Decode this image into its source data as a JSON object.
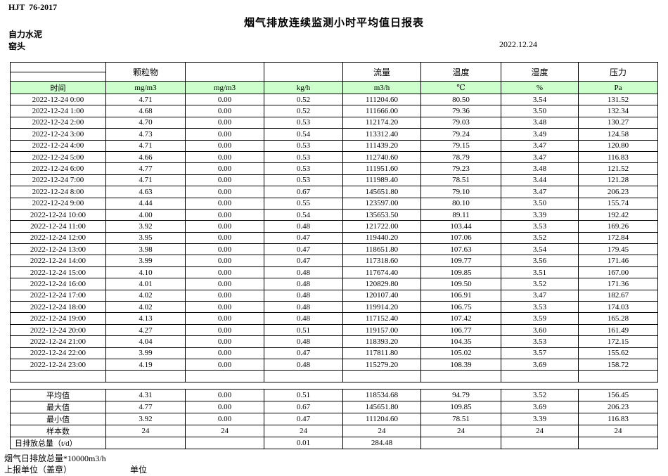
{
  "page": {
    "doc_code": "HJT  76-2017",
    "title": "烟气排放连续监测小时平均值日报表",
    "company": "自力水泥",
    "station": "窑头",
    "date": "2022.12.24"
  },
  "colors": {
    "header_green": "#ccffcc",
    "border": "#000000"
  },
  "table": {
    "group_headers": [
      "",
      "颗粒物",
      "",
      "",
      "流量",
      "温度",
      "湿度",
      "压力"
    ],
    "unit_row": [
      "时间",
      "mg/m3",
      "mg/m3",
      "kg/h",
      "m3/h",
      "℃",
      "%",
      "Pa"
    ],
    "rows": [
      [
        "2022-12-24 0:00",
        "4.71",
        "0.00",
        "0.52",
        "111204.60",
        "80.50",
        "3.54",
        "131.52"
      ],
      [
        "2022-12-24 1:00",
        "4.68",
        "0.00",
        "0.52",
        "111666.00",
        "79.36",
        "3.50",
        "132.34"
      ],
      [
        "2022-12-24 2:00",
        "4.70",
        "0.00",
        "0.53",
        "112174.20",
        "79.03",
        "3.48",
        "130.27"
      ],
      [
        "2022-12-24 3:00",
        "4.73",
        "0.00",
        "0.54",
        "113312.40",
        "79.24",
        "3.49",
        "124.58"
      ],
      [
        "2022-12-24 4:00",
        "4.71",
        "0.00",
        "0.53",
        "111439.20",
        "79.15",
        "3.47",
        "120.80"
      ],
      [
        "2022-12-24 5:00",
        "4.66",
        "0.00",
        "0.53",
        "112740.60",
        "78.79",
        "3.47",
        "116.83"
      ],
      [
        "2022-12-24 6:00",
        "4.77",
        "0.00",
        "0.53",
        "111951.60",
        "79.23",
        "3.48",
        "121.52"
      ],
      [
        "2022-12-24 7:00",
        "4.71",
        "0.00",
        "0.53",
        "111989.40",
        "78.51",
        "3.44",
        "121.28"
      ],
      [
        "2022-12-24 8:00",
        "4.63",
        "0.00",
        "0.67",
        "145651.80",
        "79.10",
        "3.47",
        "206.23"
      ],
      [
        "2022-12-24 9:00",
        "4.44",
        "0.00",
        "0.55",
        "123597.00",
        "80.10",
        "3.50",
        "155.74"
      ],
      [
        "2022-12-24 10:00",
        "4.00",
        "0.00",
        "0.54",
        "135653.50",
        "89.11",
        "3.39",
        "192.42"
      ],
      [
        "2022-12-24 11:00",
        "3.92",
        "0.00",
        "0.48",
        "121722.00",
        "103.44",
        "3.53",
        "169.26"
      ],
      [
        "2022-12-24 12:00",
        "3.95",
        "0.00",
        "0.47",
        "119440.20",
        "107.06",
        "3.52",
        "172.84"
      ],
      [
        "2022-12-24 13:00",
        "3.98",
        "0.00",
        "0.47",
        "118651.80",
        "107.63",
        "3.54",
        "179.45"
      ],
      [
        "2022-12-24 14:00",
        "3.99",
        "0.00",
        "0.47",
        "117318.60",
        "109.77",
        "3.56",
        "171.46"
      ],
      [
        "2022-12-24 15:00",
        "4.10",
        "0.00",
        "0.48",
        "117674.40",
        "109.85",
        "3.51",
        "167.00"
      ],
      [
        "2022-12-24 16:00",
        "4.01",
        "0.00",
        "0.48",
        "120829.80",
        "109.50",
        "3.52",
        "171.36"
      ],
      [
        "2022-12-24 17:00",
        "4.02",
        "0.00",
        "0.48",
        "120107.40",
        "106.91",
        "3.47",
        "182.67"
      ],
      [
        "2022-12-24 18:00",
        "4.02",
        "0.00",
        "0.48",
        "119914.20",
        "106.75",
        "3.53",
        "174.03"
      ],
      [
        "2022-12-24 19:00",
        "4.13",
        "0.00",
        "0.48",
        "117152.40",
        "107.42",
        "3.59",
        "165.28"
      ],
      [
        "2022-12-24 20:00",
        "4.27",
        "0.00",
        "0.51",
        "119157.00",
        "106.77",
        "3.60",
        "161.49"
      ],
      [
        "2022-12-24 21:00",
        "4.04",
        "0.00",
        "0.48",
        "118393.20",
        "104.35",
        "3.53",
        "172.15"
      ],
      [
        "2022-12-24 22:00",
        "3.99",
        "0.00",
        "0.47",
        "117811.80",
        "105.02",
        "3.57",
        "155.62"
      ],
      [
        "2022-12-24 23:00",
        "4.19",
        "0.00",
        "0.48",
        "115279.20",
        "108.39",
        "3.69",
        "158.72"
      ]
    ],
    "summary_rows": [
      [
        "平均值",
        "4.31",
        "0.00",
        "0.51",
        "118534.68",
        "94.79",
        "3.52",
        "156.45"
      ],
      [
        "最大值",
        "4.77",
        "0.00",
        "0.67",
        "145651.80",
        "109.85",
        "3.69",
        "206.23"
      ],
      [
        "最小值",
        "3.92",
        "0.00",
        "0.47",
        "111204.60",
        "78.51",
        "3.39",
        "116.83"
      ],
      [
        "样本数",
        "24",
        "24",
        "24",
        "24",
        "24",
        "24",
        "24"
      ],
      [
        "日排放总量（t/d）",
        "",
        "",
        "0.01",
        "284.48",
        "",
        "",
        ""
      ]
    ]
  },
  "footer": {
    "note": "烟气日排放总量*10000m3/h",
    "report_unit_label": "上报单位（盖章）",
    "unit_label": "单位"
  }
}
